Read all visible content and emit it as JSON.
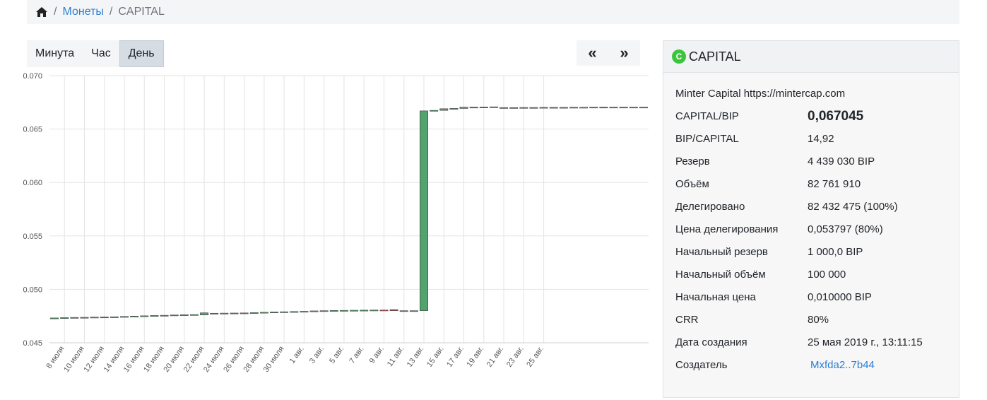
{
  "breadcrumb": {
    "home_icon": "home-icon",
    "coins_link": "Монеты",
    "current": "CAPITAL"
  },
  "period_tabs": [
    "Минута",
    "Час",
    "День"
  ],
  "active_tab": "День",
  "nav": {
    "prev": "«",
    "next": "»"
  },
  "coin": {
    "icon_letter": "C",
    "name": "CAPITAL",
    "description": "Minter Capital https://mintercap.com",
    "details": [
      {
        "label": "CAPITAL/BIP",
        "value": "0,067045"
      },
      {
        "label": "BIP/CAPITAL",
        "value": "14,92"
      },
      {
        "label": "Резерв",
        "value": "4 439 030 BIP"
      },
      {
        "label": "Объём",
        "value": "82 761 910"
      },
      {
        "label": "Делегировано",
        "value": "82 432 475 (100%)"
      },
      {
        "label": "Цена делегирования",
        "value": "0,053797 (80%)"
      },
      {
        "label": "Начальный резерв",
        "value": "1 000,0 BIP"
      },
      {
        "label": "Начальный объём",
        "value": "100 000"
      },
      {
        "label": "Начальная цена",
        "value": "0,010000 BIP"
      },
      {
        "label": "CRR",
        "value": "80%"
      },
      {
        "label": "Дата создания",
        "value": "25 мая 2019 г., 13:11:15"
      },
      {
        "label": "Создатель",
        "value": "Mxfda2..7b44"
      }
    ]
  },
  "colors": {
    "up": "#53a36f",
    "down": "#c0504d",
    "link": "#2d7fd3",
    "coin_icon": "#3cc53c"
  },
  "chart_data": {
    "type": "candlestick",
    "ylim": [
      0.045,
      0.07
    ],
    "yticks": [
      "0.045",
      "0.050",
      "0.055",
      "0.060",
      "0.065",
      "0.070"
    ],
    "xticks": [
      "8 июля",
      "10 июля",
      "12 июля",
      "14 июля",
      "16 июля",
      "18 июля",
      "20 июля",
      "22 июля",
      "24 июля",
      "26 июля",
      "28 июля",
      "30 июля",
      "1 авг.",
      "3 авг.",
      "5 авг.",
      "7 авг.",
      "9 авг.",
      "11 авг.",
      "13 авг.",
      "15 авг.",
      "17 авг.",
      "19 авг.",
      "21 авг.",
      "23 авг.",
      "25 авг."
    ],
    "series": [
      {
        "candles": [
          {
            "o": 0.0473,
            "c": 0.04732
          },
          {
            "o": 0.04732,
            "c": 0.04735
          },
          {
            "o": 0.04735,
            "c": 0.04737
          },
          {
            "o": 0.04737,
            "c": 0.04738
          },
          {
            "o": 0.04738,
            "c": 0.0474
          },
          {
            "o": 0.0474,
            "c": 0.04741
          },
          {
            "o": 0.04741,
            "c": 0.04743
          },
          {
            "o": 0.04743,
            "c": 0.04746
          },
          {
            "o": 0.04746,
            "c": 0.04749
          },
          {
            "o": 0.04749,
            "c": 0.04752
          },
          {
            "o": 0.04752,
            "c": 0.04755
          },
          {
            "o": 0.04755,
            "c": 0.04757
          },
          {
            "o": 0.04757,
            "c": 0.0476
          },
          {
            "o": 0.0476,
            "c": 0.04762
          },
          {
            "o": 0.04762,
            "c": 0.04764
          },
          {
            "o": 0.0476,
            "c": 0.0478
          },
          {
            "o": 0.04775,
            "c": 0.04776
          },
          {
            "o": 0.04776,
            "c": 0.04777
          },
          {
            "o": 0.04777,
            "c": 0.04778
          },
          {
            "o": 0.04778,
            "c": 0.04779
          },
          {
            "o": 0.04779,
            "c": 0.04782
          },
          {
            "o": 0.04782,
            "c": 0.04785
          },
          {
            "o": 0.04785,
            "c": 0.04788
          },
          {
            "o": 0.04788,
            "c": 0.0479
          },
          {
            "o": 0.0479,
            "c": 0.04792
          },
          {
            "o": 0.04792,
            "c": 0.04794
          },
          {
            "o": 0.04794,
            "c": 0.04798
          },
          {
            "o": 0.04798,
            "c": 0.048
          },
          {
            "o": 0.048,
            "c": 0.04802
          },
          {
            "o": 0.04802,
            "c": 0.04803
          },
          {
            "o": 0.04803,
            "c": 0.04804
          },
          {
            "o": 0.04804,
            "c": 0.04805
          },
          {
            "o": 0.04805,
            "c": 0.04806
          },
          {
            "o": 0.04806,
            "c": 0.04805
          },
          {
            "o": 0.0481,
            "c": 0.048
          },
          {
            "o": 0.048,
            "c": 0.048
          },
          {
            "o": 0.048,
            "c": 0.048
          },
          {
            "o": 0.048,
            "c": 0.0667
          },
          {
            "o": 0.0667,
            "c": 0.06675
          },
          {
            "o": 0.06675,
            "c": 0.0669
          },
          {
            "o": 0.0669,
            "c": 0.06693
          },
          {
            "o": 0.06693,
            "c": 0.06705
          },
          {
            "o": 0.06705,
            "c": 0.06698
          },
          {
            "o": 0.067,
            "c": 0.06706
          },
          {
            "o": 0.06706,
            "c": 0.06708
          },
          {
            "o": 0.067,
            "c": 0.06701
          },
          {
            "o": 0.06701,
            "c": 0.06701
          },
          {
            "o": 0.06701,
            "c": 0.06702
          },
          {
            "o": 0.06702,
            "c": 0.06702
          },
          {
            "o": 0.06702,
            "c": 0.06703
          },
          {
            "o": 0.06703,
            "c": 0.06703
          },
          {
            "o": 0.06703,
            "c": 0.06703
          },
          {
            "o": 0.06703,
            "c": 0.06704
          },
          {
            "o": 0.06704,
            "c": 0.06704
          },
          {
            "o": 0.06704,
            "c": 0.06705
          },
          {
            "o": 0.06705,
            "c": 0.06704
          },
          {
            "o": 0.06704,
            "c": 0.06705
          },
          {
            "o": 0.06705,
            "c": 0.06705
          },
          {
            "o": 0.06705,
            "c": 0.06705
          },
          {
            "o": 0.06705,
            "c": 0.06705
          }
        ]
      }
    ]
  }
}
